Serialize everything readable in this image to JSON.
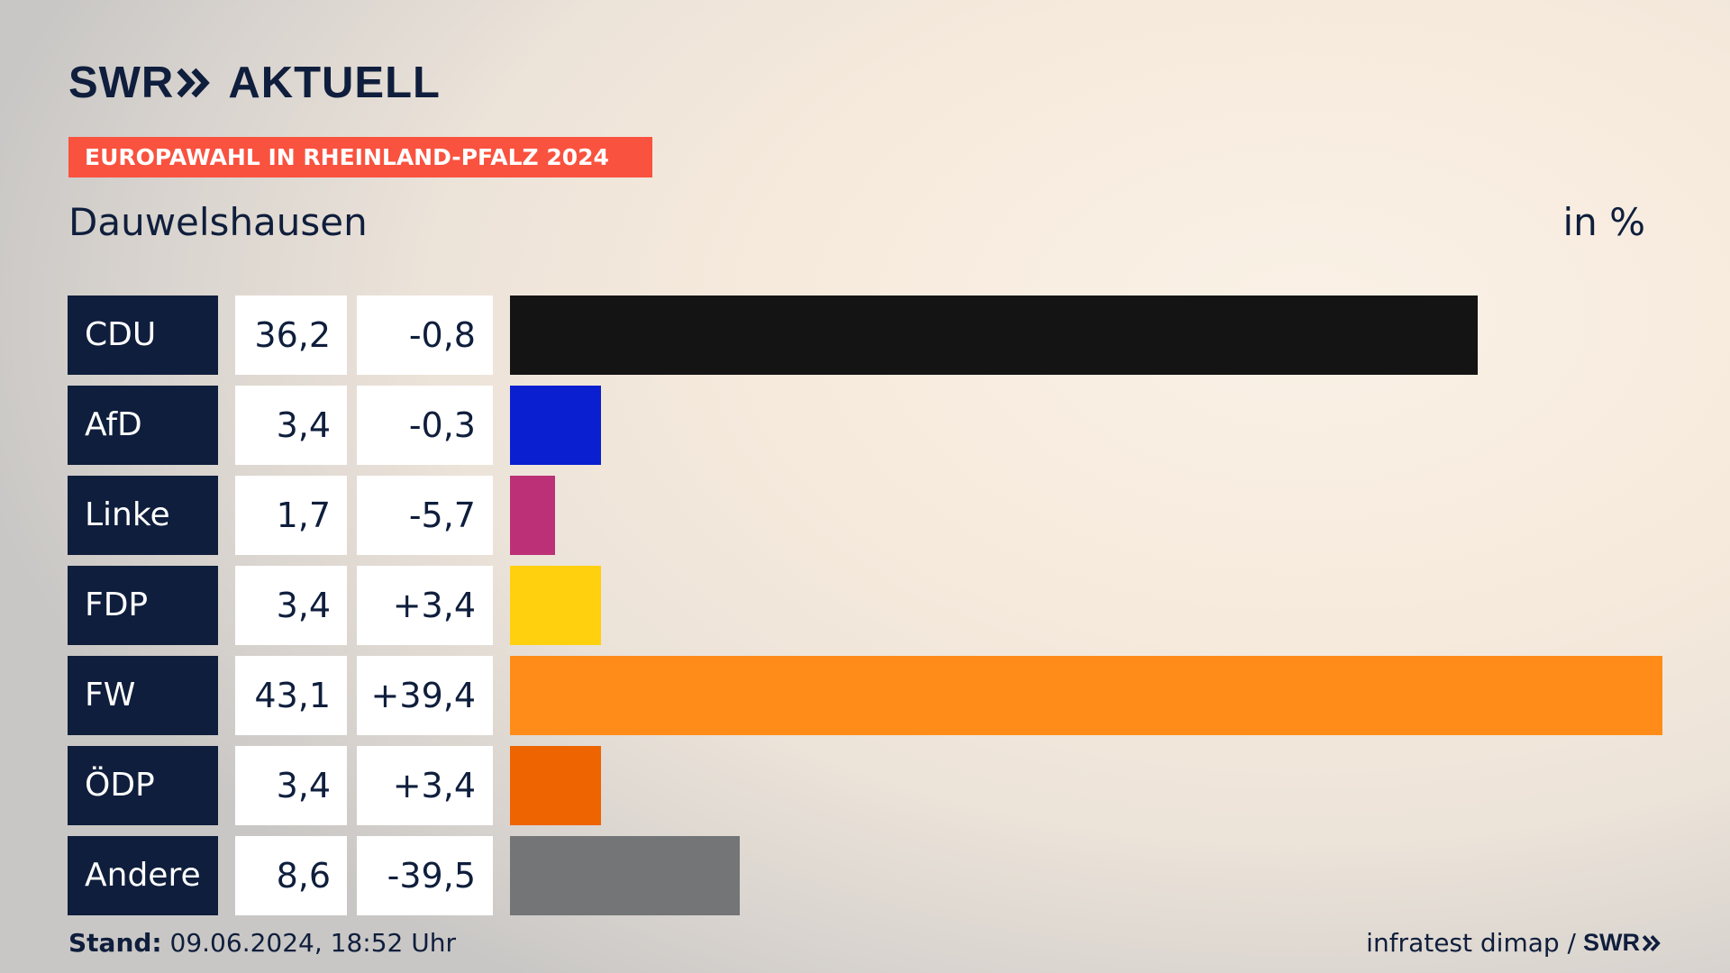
{
  "header": {
    "logo_swr": "SWR",
    "logo_aktuell": "AKTUELL",
    "banner": "EUROPAWAHL IN RHEINLAND-PFALZ 2024",
    "location": "Dauwelshausen",
    "unit": "in %"
  },
  "colors": {
    "navy": "#0f1e3c",
    "banner": "#f9523f"
  },
  "chart_data": {
    "type": "bar",
    "orientation": "horizontal",
    "title": "",
    "xlabel": "",
    "ylabel": "",
    "xlim": [
      0,
      43.1
    ],
    "categories": [
      "CDU",
      "AfD",
      "Linke",
      "FDP",
      "FW",
      "ÖDP",
      "Andere"
    ],
    "values": [
      36.2,
      3.4,
      1.7,
      3.4,
      43.1,
      3.4,
      8.6
    ],
    "rows": [
      {
        "party": "CDU",
        "value": 36.2,
        "value_label": "36,2",
        "diff_label": "-0,8",
        "color": "#141414"
      },
      {
        "party": "AfD",
        "value": 3.4,
        "value_label": "3,4",
        "diff_label": "-0,3",
        "color": "#0a1fd0"
      },
      {
        "party": "Linke",
        "value": 1.7,
        "value_label": "1,7",
        "diff_label": "-5,7",
        "color": "#bc3077"
      },
      {
        "party": "FDP",
        "value": 3.4,
        "value_label": "3,4",
        "diff_label": "+3,4",
        "color": "#ffd00e"
      },
      {
        "party": "FW",
        "value": 43.1,
        "value_label": "43,1",
        "diff_label": "+39,4",
        "color": "#ff8c18"
      },
      {
        "party": "ÖDP",
        "value": 3.4,
        "value_label": "3,4",
        "diff_label": "+3,4",
        "color": "#ee6400"
      },
      {
        "party": "Andere",
        "value": 8.6,
        "value_label": "8,6",
        "diff_label": "-39,5",
        "color": "#737577"
      }
    ]
  },
  "footer": {
    "stand_label": "Stand:",
    "stand_value": "09.06.2024, 18:52 Uhr",
    "source": "infratest dimap /",
    "source_logo": "SWR"
  }
}
